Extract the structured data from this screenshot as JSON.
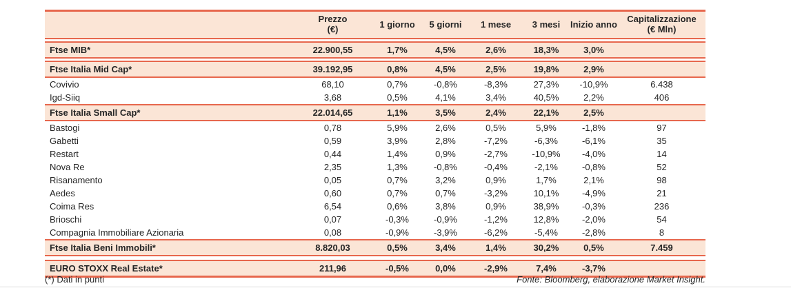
{
  "colors": {
    "accent_border": "#E7674D",
    "highlight_bg": "#FBE5D6",
    "text": "#262626",
    "hairline": "#D9D9D9"
  },
  "table": {
    "columns": [
      {
        "key": "name",
        "label": ""
      },
      {
        "key": "prezzo",
        "label": "Prezzo\n(€)"
      },
      {
        "key": "d1",
        "label": "1 giorno"
      },
      {
        "key": "d5",
        "label": "5 giorni"
      },
      {
        "key": "m1",
        "label": "1 mese"
      },
      {
        "key": "m3",
        "label": "3 mesi"
      },
      {
        "key": "ytd",
        "label": "Inizio anno"
      },
      {
        "key": "cap",
        "label": "Capitalizzazione\n(€ Mln)"
      }
    ],
    "rows": [
      {
        "type": "index",
        "gap_before": true,
        "name": "Ftse MIB*",
        "prezzo": "22.900,55",
        "d1": "1,7%",
        "d5": "4,5%",
        "m1": "2,6%",
        "m3": "18,3%",
        "ytd": "3,0%",
        "cap": ""
      },
      {
        "type": "index",
        "gap_before": true,
        "name": "Ftse Italia Mid Cap*",
        "prezzo": "39.192,95",
        "d1": "0,8%",
        "d5": "4,5%",
        "m1": "2,5%",
        "m3": "19,8%",
        "ytd": "2,9%",
        "cap": ""
      },
      {
        "type": "stock",
        "gap_before": false,
        "name": "Covivio",
        "prezzo": "68,10",
        "d1": "0,7%",
        "d5": "-0,8%",
        "m1": "-8,3%",
        "m3": "27,3%",
        "ytd": "-10,9%",
        "cap": "6.438"
      },
      {
        "type": "stock",
        "gap_before": false,
        "name": "Igd-Siiq",
        "prezzo": "3,68",
        "d1": "0,5%",
        "d5": "4,1%",
        "m1": "3,4%",
        "m3": "40,5%",
        "ytd": "2,2%",
        "cap": "406"
      },
      {
        "type": "index",
        "gap_before": false,
        "name": "Ftse Italia Small Cap*",
        "prezzo": "22.014,65",
        "d1": "1,1%",
        "d5": "3,5%",
        "m1": "2,4%",
        "m3": "22,1%",
        "ytd": "2,5%",
        "cap": ""
      },
      {
        "type": "stock",
        "gap_before": false,
        "name": "Bastogi",
        "prezzo": "0,78",
        "d1": "5,9%",
        "d5": "2,6%",
        "m1": "0,5%",
        "m3": "5,9%",
        "ytd": "-1,8%",
        "cap": "97"
      },
      {
        "type": "stock",
        "gap_before": false,
        "name": "Gabetti",
        "prezzo": "0,59",
        "d1": "3,9%",
        "d5": "2,8%",
        "m1": "-7,2%",
        "m3": "-6,3%",
        "ytd": "-6,1%",
        "cap": "35"
      },
      {
        "type": "stock",
        "gap_before": false,
        "name": "Restart",
        "prezzo": "0,44",
        "d1": "1,4%",
        "d5": "0,9%",
        "m1": "-2,7%",
        "m3": "-10,9%",
        "ytd": "-4,0%",
        "cap": "14"
      },
      {
        "type": "stock",
        "gap_before": false,
        "name": "Nova Re",
        "prezzo": "2,35",
        "d1": "1,3%",
        "d5": "-0,8%",
        "m1": "-0,4%",
        "m3": "-2,1%",
        "ytd": "-0,8%",
        "cap": "52"
      },
      {
        "type": "stock",
        "gap_before": false,
        "name": "Risanamento",
        "prezzo": "0,05",
        "d1": "0,7%",
        "d5": "3,2%",
        "m1": "0,9%",
        "m3": "1,7%",
        "ytd": "2,1%",
        "cap": "98"
      },
      {
        "type": "stock",
        "gap_before": false,
        "name": "Aedes",
        "prezzo": "0,60",
        "d1": "0,7%",
        "d5": "0,7%",
        "m1": "-3,2%",
        "m3": "10,1%",
        "ytd": "-4,9%",
        "cap": "21"
      },
      {
        "type": "stock",
        "gap_before": false,
        "name": "Coima Res",
        "prezzo": "6,54",
        "d1": "0,6%",
        "d5": "3,8%",
        "m1": "0,9%",
        "m3": "38,9%",
        "ytd": "-0,3%",
        "cap": "236"
      },
      {
        "type": "stock",
        "gap_before": false,
        "name": "Brioschi",
        "prezzo": "0,07",
        "d1": "-0,3%",
        "d5": "-0,9%",
        "m1": "-1,2%",
        "m3": "12,8%",
        "ytd": "-2,0%",
        "cap": "54"
      },
      {
        "type": "stock",
        "gap_before": false,
        "name": "Compagnia Immobiliare Azionaria",
        "prezzo": "0,08",
        "d1": "-0,9%",
        "d5": "-3,9%",
        "m1": "-6,2%",
        "m3": "-5,4%",
        "ytd": "-2,8%",
        "cap": "8"
      },
      {
        "type": "index",
        "gap_before": false,
        "name": "Ftse Italia Beni Immobili*",
        "prezzo": "8.820,03",
        "d1": "0,5%",
        "d5": "3,4%",
        "m1": "1,4%",
        "m3": "30,2%",
        "ytd": "0,5%",
        "cap": "7.459"
      },
      {
        "type": "index",
        "gap_before": true,
        "name": "EURO STOXX Real Estate*",
        "prezzo": "211,96",
        "d1": "-0,5%",
        "d5": "0,0%",
        "m1": "-2,9%",
        "m3": "7,4%",
        "ytd": "-3,7%",
        "cap": ""
      }
    ]
  },
  "footer": {
    "left": "(*) Dati in punti",
    "right": "Fonte: Bloomberg, elaborazione Market Insight."
  }
}
